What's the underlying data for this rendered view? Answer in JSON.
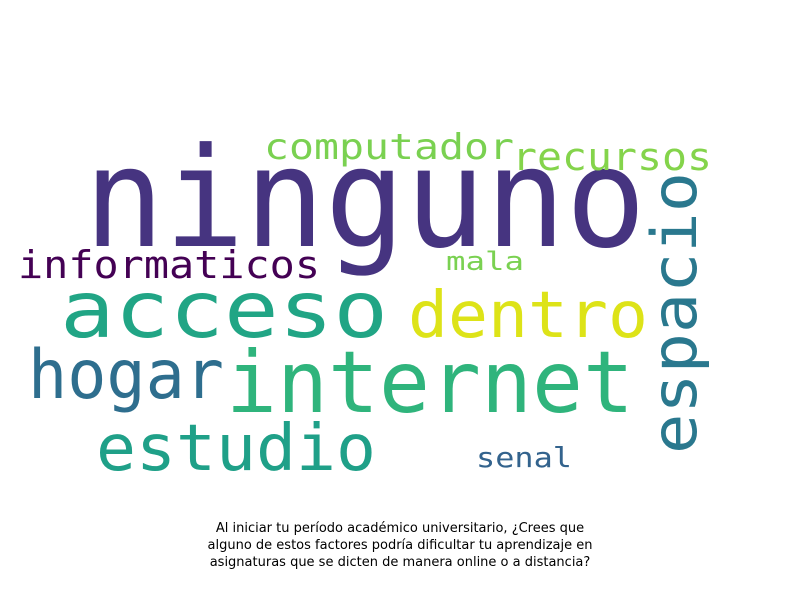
{
  "words": [
    {
      "text": "ninguno",
      "color": "#463480"
    },
    {
      "text": "acceso",
      "color": "#21a585"
    },
    {
      "text": "internet",
      "color": "#2fb47c"
    },
    {
      "text": "dentro",
      "color": "#dde318"
    },
    {
      "text": "espacio",
      "color": "#2a788e"
    },
    {
      "text": "hogar",
      "color": "#2e6e8e"
    },
    {
      "text": "estudio",
      "color": "#1fa088"
    },
    {
      "text": "computador",
      "color": "#7ad151"
    },
    {
      "text": "recursos",
      "color": "#84d44b"
    },
    {
      "text": "informaticos",
      "color": "#440154"
    },
    {
      "text": "mala",
      "color": "#7ad151"
    },
    {
      "text": "senal",
      "color": "#33638d"
    }
  ],
  "caption": {
    "line1": "Al iniciar tu período académico universitario, ¿Crees que",
    "line2": "alguno de estos factores podría dificultar tu aprendizaje en",
    "line3": "asignaturas que se dicten de manera online o a distancia?"
  }
}
